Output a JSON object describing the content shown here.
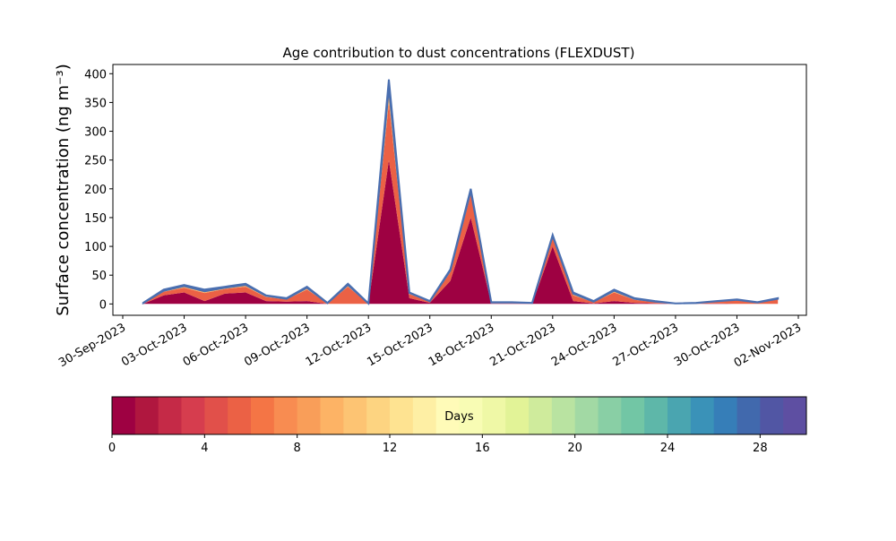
{
  "chart_data": {
    "type": "stacked_area",
    "title": "Age contribution to dust concentrations (FLEXDUST)",
    "y_label": "Surface concentration (ng m⁻³)",
    "x": [
      "01-Oct-2023",
      "02-Oct-2023",
      "03-Oct-2023",
      "04-Oct-2023",
      "05-Oct-2023",
      "06-Oct-2023",
      "07-Oct-2023",
      "08-Oct-2023",
      "09-Oct-2023",
      "10-Oct-2023",
      "11-Oct-2023",
      "12-Oct-2023",
      "13-Oct-2023",
      "14-Oct-2023",
      "15-Oct-2023",
      "16-Oct-2023",
      "17-Oct-2023",
      "18-Oct-2023",
      "19-Oct-2023",
      "20-Oct-2023",
      "21-Oct-2023",
      "22-Oct-2023",
      "23-Oct-2023",
      "24-Oct-2023",
      "25-Oct-2023",
      "26-Oct-2023",
      "27-Oct-2023",
      "28-Oct-2023",
      "29-Oct-2023",
      "30-Oct-2023",
      "31-Oct-2023",
      "01-Nov-2023"
    ],
    "series": [
      {
        "color": "#9e0142",
        "values": [
          0,
          15,
          20,
          5,
          18,
          20,
          5,
          4,
          5,
          0,
          0,
          0,
          250,
          10,
          2,
          40,
          150,
          1,
          1,
          0.5,
          100,
          5,
          1,
          5,
          2,
          1,
          0,
          0,
          1,
          0,
          0,
          0
        ]
      },
      {
        "color": "#eb6145",
        "values": [
          1,
          6,
          8,
          14,
          8,
          10,
          7,
          4,
          20,
          1,
          30,
          0.5,
          100,
          7,
          2,
          15,
          40,
          1,
          1,
          1,
          15,
          10,
          2,
          15,
          5,
          2,
          0.5,
          1,
          3,
          6,
          2,
          8
        ]
      },
      {
        "color": "#fdb365",
        "values": [
          0.5,
          2,
          3,
          3,
          2,
          3,
          2,
          1,
          3,
          0.5,
          3,
          0.3,
          25,
          2,
          0.5,
          3,
          6,
          0.5,
          0.5,
          0.3,
          3,
          3,
          1,
          3,
          2,
          1,
          0.3,
          0.5,
          0.5,
          1,
          0.5,
          1
        ]
      },
      {
        "color": "#5e4fa2",
        "values": [
          0.5,
          2,
          2,
          3,
          2,
          2,
          1,
          1,
          2,
          0.5,
          2,
          0.2,
          15,
          1,
          0.5,
          2,
          4,
          0.5,
          0.5,
          0.2,
          2,
          2,
          1,
          2,
          1,
          1,
          0.2,
          0.5,
          0.5,
          1,
          0.5,
          1
        ]
      }
    ],
    "line_color": "#4a6fb0",
    "xlim": [
      "30-Sep-2023",
      "02-Nov-2023"
    ],
    "xticks": [
      "30-Sep-2023",
      "03-Oct-2023",
      "06-Oct-2023",
      "09-Oct-2023",
      "12-Oct-2023",
      "15-Oct-2023",
      "18-Oct-2023",
      "21-Oct-2023",
      "24-Oct-2023",
      "27-Oct-2023",
      "30-Oct-2023",
      "02-Nov-2023"
    ],
    "ylim": [
      -19.7,
      416
    ],
    "yticks": [
      0,
      50,
      100,
      150,
      200,
      250,
      300,
      350,
      400
    ],
    "grid": false,
    "colorbar": {
      "label": "Days",
      "lim": [
        0,
        30
      ],
      "ticks": [
        0,
        4,
        8,
        12,
        16,
        20,
        24,
        28
      ],
      "colors": [
        "#9e0142",
        "#b0173f",
        "#c52a47",
        "#d63d4e",
        "#e1504a",
        "#eb6145",
        "#f47545",
        "#f88c51",
        "#f99e59",
        "#fdb365",
        "#fdc473",
        "#fdd481",
        "#fee391",
        "#feefa4",
        "#fffbb8",
        "#f8fcb4",
        "#eff8a6",
        "#e2f397",
        "#cfeb9c",
        "#b9e3a1",
        "#a2d9a4",
        "#89cfa5",
        "#72c6a5",
        "#5eb7a9",
        "#4aa5b0",
        "#3a92b8",
        "#367eb8",
        "#4169ad",
        "#5156a4",
        "#5e4fa2"
      ]
    }
  }
}
